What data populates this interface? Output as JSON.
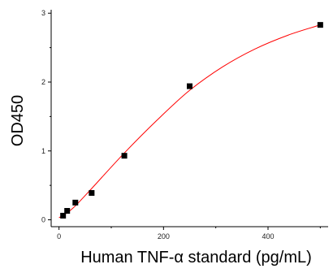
{
  "chart_data": {
    "type": "scatter",
    "xlabel": "Human TNF-α standard (pg/mL)",
    "ylabel": "OD450",
    "xlim": [
      -15,
      515
    ],
    "ylim": [
      -0.1,
      3.05
    ],
    "x_ticks": [
      0,
      200,
      400
    ],
    "x_tick_labels": [
      "0",
      "200",
      "400"
    ],
    "y_ticks": [
      0,
      1,
      2,
      3
    ],
    "y_tick_labels": [
      "0",
      "1",
      "2",
      "3"
    ],
    "grid": false,
    "legend": "none",
    "series": [
      {
        "points": [
          {
            "x": 7.8,
            "y": 0.06
          },
          {
            "x": 15.6,
            "y": 0.13
          },
          {
            "x": 31.3,
            "y": 0.25
          },
          {
            "x": 62.5,
            "y": 0.39
          },
          {
            "x": 125,
            "y": 0.93
          },
          {
            "x": 250,
            "y": 1.94
          },
          {
            "x": 500,
            "y": 2.83
          }
        ],
        "fit_curve": {
          "model": "4PL",
          "points": [
            {
              "x": 0,
              "y": 0.03
            },
            {
              "x": 15,
              "y": 0.1
            },
            {
              "x": 31,
              "y": 0.2
            },
            {
              "x": 62,
              "y": 0.45
            },
            {
              "x": 125,
              "y": 0.97
            },
            {
              "x": 188,
              "y": 1.45
            },
            {
              "x": 250,
              "y": 1.88
            },
            {
              "x": 313,
              "y": 2.22
            },
            {
              "x": 375,
              "y": 2.48
            },
            {
              "x": 438,
              "y": 2.68
            },
            {
              "x": 500,
              "y": 2.83
            }
          ]
        }
      }
    ],
    "colors": {
      "marker": "#000000",
      "curve": "#ff0000",
      "axis": "#000000"
    }
  }
}
